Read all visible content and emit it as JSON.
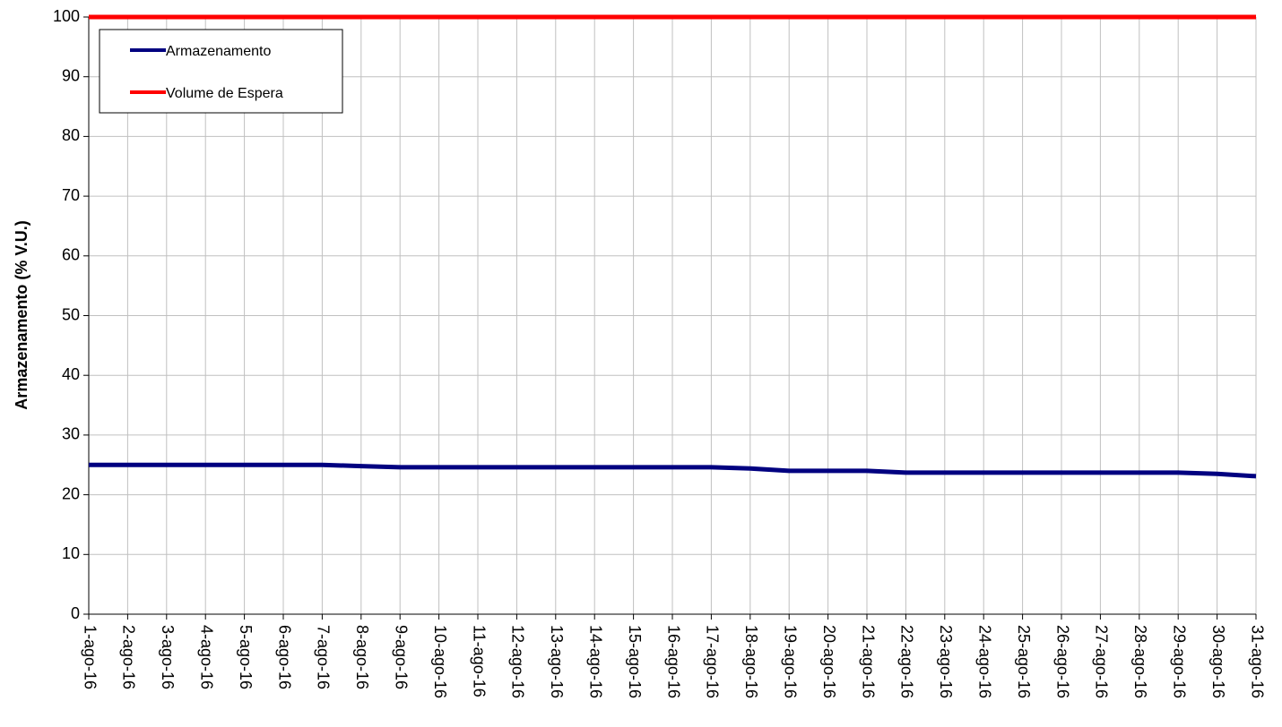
{
  "chart_data": {
    "type": "line",
    "title": "",
    "xlabel": "",
    "ylabel": "Armazenamento (% V.U.)",
    "ylim": [
      0,
      100
    ],
    "yticks": [
      0,
      10,
      20,
      30,
      40,
      50,
      60,
      70,
      80,
      90,
      100
    ],
    "grid": true,
    "legend_position": "top-left",
    "categories": [
      "1-ago-16",
      "2-ago-16",
      "3-ago-16",
      "4-ago-16",
      "5-ago-16",
      "6-ago-16",
      "7-ago-16",
      "8-ago-16",
      "9-ago-16",
      "10-ago-16",
      "11-ago-16",
      "12-ago-16",
      "13-ago-16",
      "14-ago-16",
      "15-ago-16",
      "16-ago-16",
      "17-ago-16",
      "18-ago-16",
      "19-ago-16",
      "20-ago-16",
      "21-ago-16",
      "22-ago-16",
      "23-ago-16",
      "24-ago-16",
      "25-ago-16",
      "26-ago-16",
      "27-ago-16",
      "28-ago-16",
      "29-ago-16",
      "30-ago-16",
      "31-ago-16"
    ],
    "series": [
      {
        "name": "Armazenamento",
        "color": "#000080",
        "values": [
          25.0,
          25.0,
          25.0,
          25.0,
          25.0,
          25.0,
          25.0,
          24.8,
          24.6,
          24.6,
          24.6,
          24.6,
          24.6,
          24.6,
          24.6,
          24.6,
          24.6,
          24.4,
          24.0,
          24.0,
          24.0,
          23.7,
          23.7,
          23.7,
          23.7,
          23.7,
          23.7,
          23.7,
          23.7,
          23.5,
          23.1
        ]
      },
      {
        "name": "Volume de Espera",
        "color": "#ff0000",
        "values": [
          100,
          100,
          100,
          100,
          100,
          100,
          100,
          100,
          100,
          100,
          100,
          100,
          100,
          100,
          100,
          100,
          100,
          100,
          100,
          100,
          100,
          100,
          100,
          100,
          100,
          100,
          100,
          100,
          100,
          100,
          100
        ]
      }
    ]
  }
}
